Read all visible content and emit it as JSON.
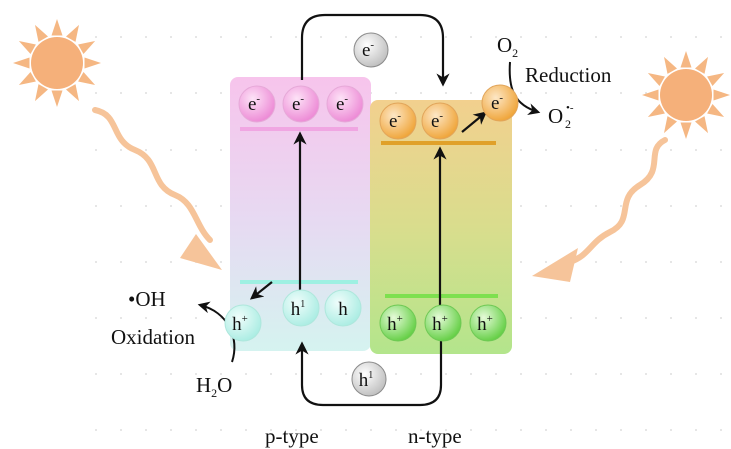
{
  "labels": {
    "p_type": "p-type",
    "n_type": "n-type",
    "reduction": "Reduction",
    "oxidation": "Oxidation",
    "o2": "O",
    "o2_sub": "2",
    "superoxide": "O",
    "superoxide_sub": "2",
    "superoxide_sup": "•-",
    "hydroxyl": "•OH",
    "water_h": "H",
    "water_sub": "2",
    "water_o": "O"
  },
  "particles": {
    "electron": "e",
    "electron_sup": "-",
    "hole": "h",
    "hole_sup": "+",
    "hole_unit": "1"
  },
  "colors": {
    "p_panel_top": "#f6c6ec",
    "p_panel_bottom": "#d7f3f1",
    "n_panel_top": "#f3d08a",
    "n_panel_bottom": "#b6e58d",
    "pink_electron": "#f08bd7",
    "orange_electron": "#f2a93a",
    "teal_hole": "#8fe7d8",
    "green_hole": "#6fd44f",
    "sun": "#f5b783",
    "arrow_light": "#f6c08f",
    "p_cb_band": "#f0a6e2",
    "p_vb_band": "#9ef0e2",
    "n_cb_band": "#e0a12a",
    "n_vb_band": "#7ee04f"
  },
  "icons": [
    "sun-icon",
    "light-arrow-icon"
  ]
}
